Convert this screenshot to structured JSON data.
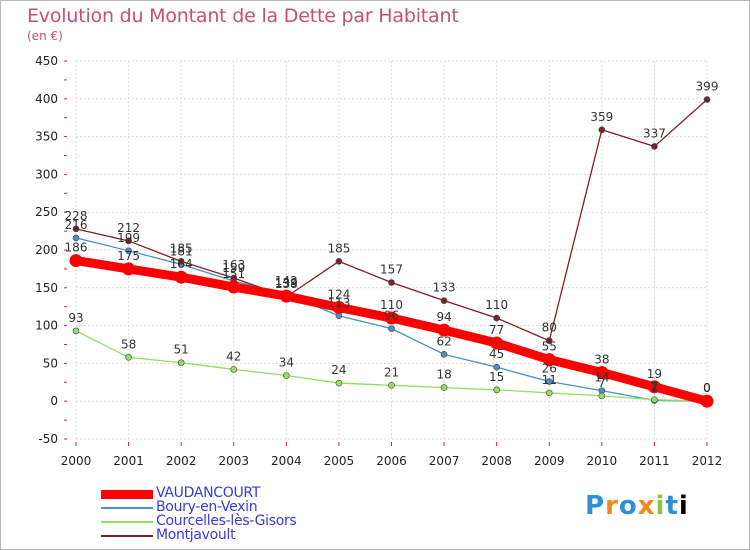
{
  "title": "Evolution du Montant de la Dette par Habitant",
  "subtitle": "(en €)",
  "logo": [
    "P",
    "r",
    "o",
    "x",
    "i",
    "t",
    "i"
  ],
  "chart_data": {
    "type": "line",
    "x": [
      "2000",
      "2001",
      "2002",
      "2003",
      "2004",
      "2005",
      "2006",
      "2007",
      "2008",
      "2009",
      "2010",
      "2011",
      "2012"
    ],
    "ylim": [
      -50,
      450
    ],
    "yticks": [
      -50,
      0,
      50,
      100,
      150,
      200,
      250,
      300,
      350,
      400,
      450
    ],
    "grid": true,
    "legend_position": "bottom-left",
    "series": [
      {
        "name": "VAUDANCOURT",
        "color": "#ff0000",
        "values": [
          186,
          175,
          164,
          151,
          139,
          124,
          110,
          94,
          77,
          55,
          38,
          19,
          0
        ],
        "labels": [
          "186",
          "175",
          "164",
          "151",
          "139",
          "124",
          "110",
          "94",
          "77",
          "55",
          "38",
          "19",
          "0"
        ]
      },
      {
        "name": "Boury-en-Vexin",
        "color": "#4a90c8",
        "values": [
          216,
          199,
          181,
          159,
          142,
          113,
          96,
          62,
          45,
          26,
          14,
          1,
          0
        ],
        "labels": [
          "216",
          "199",
          "181",
          "159",
          "142",
          "113",
          "96",
          "62",
          "45",
          "26",
          "14",
          "1",
          "0"
        ]
      },
      {
        "name": "Courcelles-lès-Gisors",
        "color": "#90e060",
        "values": [
          93,
          58,
          51,
          42,
          34,
          24,
          21,
          18,
          15,
          11,
          7,
          2,
          0
        ],
        "labels": [
          "93",
          "58",
          "51",
          "42",
          "34",
          "24",
          "21",
          "18",
          "15",
          "11",
          "7",
          "2",
          "0"
        ]
      },
      {
        "name": "Montjavoult",
        "color": "#7a2228",
        "values": [
          228,
          212,
          185,
          163,
          138,
          185,
          157,
          133,
          110,
          80,
          359,
          337,
          399
        ],
        "labels": [
          "228",
          "212",
          "185",
          "163",
          "138",
          "185",
          "157",
          "133",
          "110",
          "80",
          "359",
          "337",
          "399"
        ]
      }
    ]
  }
}
